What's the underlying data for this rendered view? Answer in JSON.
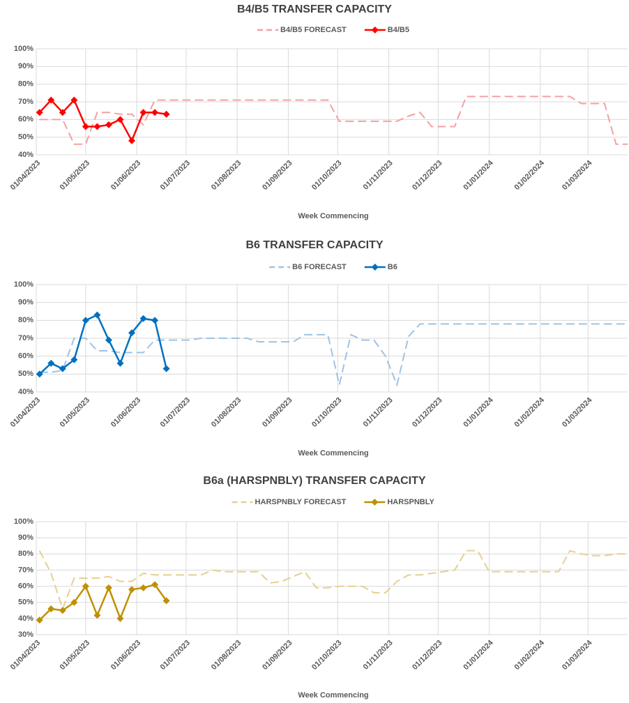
{
  "chart_data": [
    {
      "type": "line",
      "title": "B4/B5 TRANSFER CAPACITY",
      "x_label": "Week Commencing",
      "x": [
        "2023-04-03",
        "2023-04-10",
        "2023-04-17",
        "2023-04-24",
        "2023-05-01",
        "2023-05-08",
        "2023-05-15",
        "2023-05-22",
        "2023-05-29",
        "2023-06-05",
        "2023-06-12",
        "2023-06-19",
        "2023-06-26",
        "2023-07-03",
        "2023-07-10",
        "2023-07-17",
        "2023-07-24",
        "2023-07-31",
        "2023-08-07",
        "2023-08-14",
        "2023-08-21",
        "2023-08-28",
        "2023-09-04",
        "2023-09-11",
        "2023-09-18",
        "2023-09-25",
        "2023-10-02",
        "2023-10-09",
        "2023-10-16",
        "2023-10-23",
        "2023-10-30",
        "2023-11-06",
        "2023-11-13",
        "2023-11-20",
        "2023-11-27",
        "2023-12-04",
        "2023-12-11",
        "2023-12-18",
        "2023-12-25",
        "2024-01-01",
        "2024-01-08",
        "2024-01-15",
        "2024-01-22",
        "2024-01-29",
        "2024-02-05",
        "2024-02-12",
        "2024-02-19",
        "2024-02-26",
        "2024-03-04",
        "2024-03-11",
        "2024-03-18",
        "2024-03-25"
      ],
      "xlim": [
        "2023-04-01",
        "2024-03-25"
      ],
      "xticks": [
        {
          "value": "2023-04-01",
          "label": "01/04/2023"
        },
        {
          "value": "2023-05-01",
          "label": "01/05/2023"
        },
        {
          "value": "2023-06-01",
          "label": "01/06/2023"
        },
        {
          "value": "2023-07-01",
          "label": "01/07/2023"
        },
        {
          "value": "2023-08-01",
          "label": "01/08/2023"
        },
        {
          "value": "2023-09-01",
          "label": "01/09/2023"
        },
        {
          "value": "2023-10-01",
          "label": "01/10/2023"
        },
        {
          "value": "2023-11-01",
          "label": "01/11/2023"
        },
        {
          "value": "2023-12-01",
          "label": "01/12/2023"
        },
        {
          "value": "2024-01-01",
          "label": "01/01/2024"
        },
        {
          "value": "2024-02-01",
          "label": "01/02/2024"
        },
        {
          "value": "2024-03-01",
          "label": "01/03/2024"
        }
      ],
      "ylim": [
        40,
        100
      ],
      "yticks": [
        {
          "value": 40,
          "label": "40%"
        },
        {
          "value": 50,
          "label": "50%"
        },
        {
          "value": 60,
          "label": "60%"
        },
        {
          "value": 70,
          "label": "70%"
        },
        {
          "value": 80,
          "label": "80%"
        },
        {
          "value": 90,
          "label": "90%"
        },
        {
          "value": 100,
          "label": "100%"
        }
      ],
      "grid": true,
      "series": [
        {
          "name": "B4/B5 FORECAST",
          "color": "#f4a0a0",
          "dashed": true,
          "marker": "none",
          "values": [
            60,
            60,
            60,
            46,
            46,
            64,
            64,
            63,
            63,
            57,
            71,
            71,
            71,
            71,
            71,
            71,
            71,
            71,
            71,
            71,
            71,
            71,
            71,
            71,
            71,
            71,
            59,
            59,
            59,
            59,
            59,
            59,
            62,
            64,
            56,
            56,
            56,
            73,
            73,
            73,
            73,
            73,
            73,
            73,
            73,
            73,
            73,
            69,
            69,
            69,
            46,
            46
          ]
        },
        {
          "name": "B4/B5",
          "color": "#ff0000",
          "dashed": false,
          "marker": "diamond",
          "values": [
            64,
            71,
            64,
            71,
            56,
            56,
            57,
            60,
            48,
            64,
            64,
            63,
            null,
            null,
            null,
            null,
            null,
            null,
            null,
            null,
            null,
            null,
            null,
            null,
            null,
            null,
            null,
            null,
            null,
            null,
            null,
            null,
            null,
            null,
            null,
            null,
            null,
            null,
            null,
            null,
            null,
            null,
            null,
            null,
            null,
            null,
            null,
            null,
            null,
            null,
            null,
            null
          ]
        }
      ]
    },
    {
      "type": "line",
      "title": "B6 TRANSFER CAPACITY",
      "x_label": "Week Commencing",
      "x": [
        "2023-04-03",
        "2023-04-10",
        "2023-04-17",
        "2023-04-24",
        "2023-05-01",
        "2023-05-08",
        "2023-05-15",
        "2023-05-22",
        "2023-05-29",
        "2023-06-05",
        "2023-06-12",
        "2023-06-19",
        "2023-06-26",
        "2023-07-03",
        "2023-07-10",
        "2023-07-17",
        "2023-07-24",
        "2023-07-31",
        "2023-08-07",
        "2023-08-14",
        "2023-08-21",
        "2023-08-28",
        "2023-09-04",
        "2023-09-11",
        "2023-09-18",
        "2023-09-25",
        "2023-10-02",
        "2023-10-09",
        "2023-10-16",
        "2023-10-23",
        "2023-10-30",
        "2023-11-06",
        "2023-11-13",
        "2023-11-20",
        "2023-11-27",
        "2023-12-04",
        "2023-12-11",
        "2023-12-18",
        "2023-12-25",
        "2024-01-01",
        "2024-01-08",
        "2024-01-15",
        "2024-01-22",
        "2024-01-29",
        "2024-02-05",
        "2024-02-12",
        "2024-02-19",
        "2024-02-26",
        "2024-03-04",
        "2024-03-11",
        "2024-03-18",
        "2024-03-25"
      ],
      "xlim": [
        "2023-04-01",
        "2024-03-25"
      ],
      "xticks": [
        {
          "value": "2023-04-01",
          "label": "01/04/2023"
        },
        {
          "value": "2023-05-01",
          "label": "01/05/2023"
        },
        {
          "value": "2023-06-01",
          "label": "01/06/2023"
        },
        {
          "value": "2023-07-01",
          "label": "01/07/2023"
        },
        {
          "value": "2023-08-01",
          "label": "01/08/2023"
        },
        {
          "value": "2023-09-01",
          "label": "01/09/2023"
        },
        {
          "value": "2023-10-01",
          "label": "01/10/2023"
        },
        {
          "value": "2023-11-01",
          "label": "01/11/2023"
        },
        {
          "value": "2023-12-01",
          "label": "01/12/2023"
        },
        {
          "value": "2024-01-01",
          "label": "01/01/2024"
        },
        {
          "value": "2024-02-01",
          "label": "01/02/2024"
        },
        {
          "value": "2024-03-01",
          "label": "01/03/2024"
        }
      ],
      "ylim": [
        40,
        100
      ],
      "yticks": [
        {
          "value": 40,
          "label": "40%"
        },
        {
          "value": 50,
          "label": "50%"
        },
        {
          "value": 60,
          "label": "60%"
        },
        {
          "value": 70,
          "label": "70%"
        },
        {
          "value": 80,
          "label": "80%"
        },
        {
          "value": 90,
          "label": "90%"
        },
        {
          "value": 100,
          "label": "100%"
        }
      ],
      "grid": true,
      "series": [
        {
          "name": "B6 FORECAST",
          "color": "#9dc3e6",
          "dashed": true,
          "marker": "none",
          "values": [
            51,
            51,
            52,
            70,
            70,
            63,
            63,
            62,
            62,
            62,
            69,
            69,
            69,
            69,
            70,
            70,
            70,
            70,
            70,
            68,
            68,
            68,
            68,
            72,
            72,
            72,
            44,
            72,
            69,
            69,
            60,
            44,
            71,
            78,
            78,
            78,
            78,
            78,
            78,
            78,
            78,
            78,
            78,
            78,
            78,
            78,
            78,
            78,
            78,
            78,
            78,
            78
          ]
        },
        {
          "name": "B6",
          "color": "#0070c0",
          "dashed": false,
          "marker": "diamond",
          "values": [
            50,
            56,
            53,
            58,
            80,
            83,
            69,
            56,
            73,
            81,
            80,
            53,
            null,
            null,
            null,
            null,
            null,
            null,
            null,
            null,
            null,
            null,
            null,
            null,
            null,
            null,
            null,
            null,
            null,
            null,
            null,
            null,
            null,
            null,
            null,
            null,
            null,
            null,
            null,
            null,
            null,
            null,
            null,
            null,
            null,
            null,
            null,
            null,
            null,
            null,
            null,
            null
          ]
        }
      ]
    },
    {
      "type": "line",
      "title": "B6a (HARSPNBLY) TRANSFER CAPACITY",
      "x_label": "Week Commencing",
      "x": [
        "2023-04-03",
        "2023-04-10",
        "2023-04-17",
        "2023-04-24",
        "2023-05-01",
        "2023-05-08",
        "2023-05-15",
        "2023-05-22",
        "2023-05-29",
        "2023-06-05",
        "2023-06-12",
        "2023-06-19",
        "2023-06-26",
        "2023-07-03",
        "2023-07-10",
        "2023-07-17",
        "2023-07-24",
        "2023-07-31",
        "2023-08-07",
        "2023-08-14",
        "2023-08-21",
        "2023-08-28",
        "2023-09-04",
        "2023-09-11",
        "2023-09-18",
        "2023-09-25",
        "2023-10-02",
        "2023-10-09",
        "2023-10-16",
        "2023-10-23",
        "2023-10-30",
        "2023-11-06",
        "2023-11-13",
        "2023-11-20",
        "2023-11-27",
        "2023-12-04",
        "2023-12-11",
        "2023-12-18",
        "2023-12-25",
        "2024-01-01",
        "2024-01-08",
        "2024-01-15",
        "2024-01-22",
        "2024-01-29",
        "2024-02-05",
        "2024-02-12",
        "2024-02-19",
        "2024-02-26",
        "2024-03-04",
        "2024-03-11",
        "2024-03-18",
        "2024-03-25"
      ],
      "xlim": [
        "2023-04-01",
        "2024-03-25"
      ],
      "xticks": [
        {
          "value": "2023-04-01",
          "label": "01/04/2023"
        },
        {
          "value": "2023-05-01",
          "label": "01/05/2023"
        },
        {
          "value": "2023-06-01",
          "label": "01/06/2023"
        },
        {
          "value": "2023-07-01",
          "label": "01/07/2023"
        },
        {
          "value": "2023-08-01",
          "label": "01/08/2023"
        },
        {
          "value": "2023-09-01",
          "label": "01/09/2023"
        },
        {
          "value": "2023-10-01",
          "label": "01/10/2023"
        },
        {
          "value": "2023-11-01",
          "label": "01/11/2023"
        },
        {
          "value": "2023-12-01",
          "label": "01/12/2023"
        },
        {
          "value": "2024-01-01",
          "label": "01/01/2024"
        },
        {
          "value": "2024-02-01",
          "label": "01/02/2024"
        },
        {
          "value": "2024-03-01",
          "label": "01/03/2024"
        }
      ],
      "ylim": [
        30,
        100
      ],
      "yticks": [
        {
          "value": 30,
          "label": "30%"
        },
        {
          "value": 40,
          "label": "40%"
        },
        {
          "value": 50,
          "label": "50%"
        },
        {
          "value": 60,
          "label": "60%"
        },
        {
          "value": 70,
          "label": "70%"
        },
        {
          "value": 80,
          "label": "80%"
        },
        {
          "value": 90,
          "label": "90%"
        },
        {
          "value": 100,
          "label": "100%"
        }
      ],
      "grid": true,
      "series": [
        {
          "name": "HARSPNBLY FORECAST",
          "color": "#e6cf8f",
          "dashed": true,
          "marker": "none",
          "values": [
            82,
            68,
            46,
            65,
            65,
            65,
            66,
            63,
            63,
            68,
            67,
            67,
            67,
            67,
            67,
            70,
            69,
            69,
            69,
            69,
            62,
            63,
            66,
            69,
            59,
            59,
            60,
            60,
            60,
            56,
            56,
            63,
            67,
            67,
            68,
            69,
            70,
            82,
            82,
            69,
            69,
            69,
            69,
            69,
            69,
            69,
            82,
            80,
            79,
            79,
            80,
            80
          ]
        },
        {
          "name": "HARSPNBLY",
          "color": "#bf9000",
          "dashed": false,
          "marker": "diamond",
          "values": [
            39,
            46,
            45,
            50,
            60,
            42,
            59,
            40,
            58,
            59,
            61,
            51,
            null,
            null,
            null,
            null,
            null,
            null,
            null,
            null,
            null,
            null,
            null,
            null,
            null,
            null,
            null,
            null,
            null,
            null,
            null,
            null,
            null,
            null,
            null,
            null,
            null,
            null,
            null,
            null,
            null,
            null,
            null,
            null,
            null,
            null,
            null,
            null,
            null,
            null,
            null,
            null
          ]
        }
      ]
    }
  ]
}
